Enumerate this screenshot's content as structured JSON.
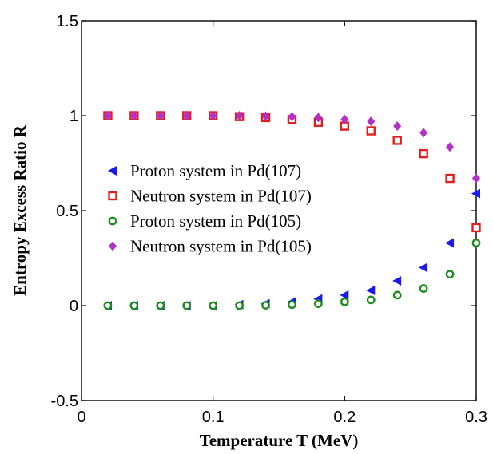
{
  "chart_data": {
    "type": "scatter",
    "title": "",
    "xlabel": "Temperature T (MeV)",
    "ylabel": "Entropy Excess Ratio R",
    "xlim": [
      0,
      0.3
    ],
    "ylim": [
      -0.5,
      1.5
    ],
    "xticks": [
      "0",
      "0.1",
      "0.2",
      "0.3"
    ],
    "yticks": [
      "-0.5",
      "0",
      "0.5",
      "1",
      "1.5"
    ],
    "grid": false,
    "legend_position": "center-left",
    "series": [
      {
        "name": "Proton system in Pd(107)",
        "marker": "triangle-left",
        "color": "#1a1aee",
        "x": [
          0.02,
          0.04,
          0.06,
          0.08,
          0.1,
          0.12,
          0.14,
          0.16,
          0.18,
          0.2,
          0.22,
          0.24,
          0.26,
          0.28,
          0.3
        ],
        "y": [
          0.0,
          0.0,
          0.0,
          0.0,
          0.0,
          0.005,
          0.01,
          0.02,
          0.035,
          0.055,
          0.08,
          0.13,
          0.2,
          0.33,
          0.59
        ]
      },
      {
        "name": "Neutron system in Pd(107)",
        "marker": "square-open",
        "color": "#e02020",
        "x": [
          0.02,
          0.04,
          0.06,
          0.08,
          0.1,
          0.12,
          0.14,
          0.16,
          0.18,
          0.2,
          0.22,
          0.24,
          0.26,
          0.28,
          0.3
        ],
        "y": [
          1.0,
          1.0,
          1.0,
          1.0,
          1.0,
          0.995,
          0.99,
          0.98,
          0.965,
          0.945,
          0.92,
          0.87,
          0.8,
          0.67,
          0.41
        ]
      },
      {
        "name": "Proton system in Pd(105)",
        "marker": "circle-open",
        "color": "#1e8c1e",
        "x": [
          0.02,
          0.04,
          0.06,
          0.08,
          0.1,
          0.12,
          0.14,
          0.16,
          0.18,
          0.2,
          0.22,
          0.24,
          0.26,
          0.28,
          0.3
        ],
        "y": [
          0.0,
          0.0,
          0.0,
          0.0,
          0.0,
          0.0,
          0.002,
          0.005,
          0.01,
          0.02,
          0.03,
          0.055,
          0.09,
          0.165,
          0.33
        ]
      },
      {
        "name": "Neutron system in Pd(105)",
        "marker": "diamond",
        "color": "#b530c8",
        "x": [
          0.02,
          0.04,
          0.06,
          0.08,
          0.1,
          0.12,
          0.14,
          0.16,
          0.18,
          0.2,
          0.22,
          0.24,
          0.26,
          0.28,
          0.3
        ],
        "y": [
          1.0,
          1.0,
          1.0,
          1.0,
          1.0,
          1.0,
          0.998,
          0.995,
          0.99,
          0.98,
          0.97,
          0.945,
          0.91,
          0.835,
          0.67
        ]
      }
    ]
  }
}
